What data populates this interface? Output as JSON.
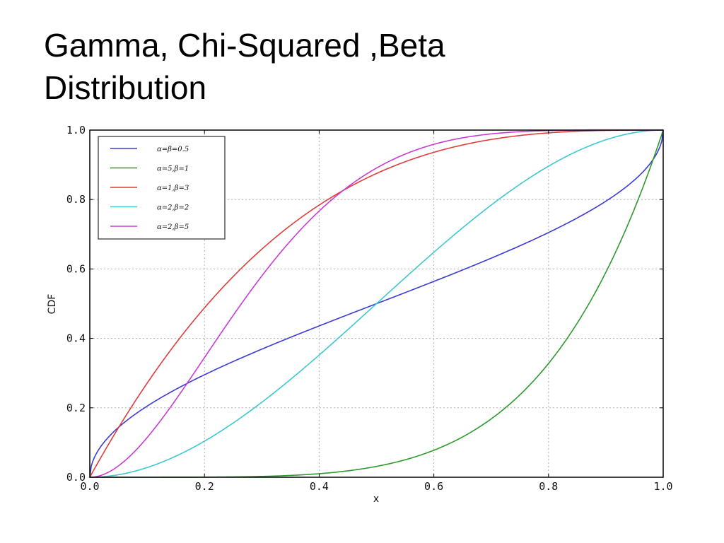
{
  "slide": {
    "title_line1": "Gamma, Chi-Squared ,Beta",
    "title_line2": "Distribution"
  },
  "chart_data": {
    "type": "line",
    "title": "",
    "xlabel": "x",
    "ylabel": "CDF",
    "xlim": [
      0.0,
      1.0
    ],
    "ylim": [
      0.0,
      1.0
    ],
    "x_ticks": [
      "0.0",
      "0.2",
      "0.4",
      "0.6",
      "0.8",
      "1.0"
    ],
    "y_ticks": [
      "0.0",
      "0.2",
      "0.4",
      "0.6",
      "0.8",
      "1.0"
    ],
    "grid": true,
    "legend_position": "top-left",
    "series": [
      {
        "name": "α=β=0.5",
        "color": "#3b3bd6",
        "alpha": 0.5,
        "beta": 0.5
      },
      {
        "name": "α=5,β=1",
        "color": "#2e9a2e",
        "alpha": 5,
        "beta": 1
      },
      {
        "name": "α=1,β=3",
        "color": "#e03c3c",
        "alpha": 1,
        "beta": 3
      },
      {
        "name": "α=2,β=2",
        "color": "#3cc8d2",
        "alpha": 2,
        "beta": 2
      },
      {
        "name": "α=2,β=5",
        "color": "#c83cd2",
        "alpha": 2,
        "beta": 5
      }
    ]
  }
}
